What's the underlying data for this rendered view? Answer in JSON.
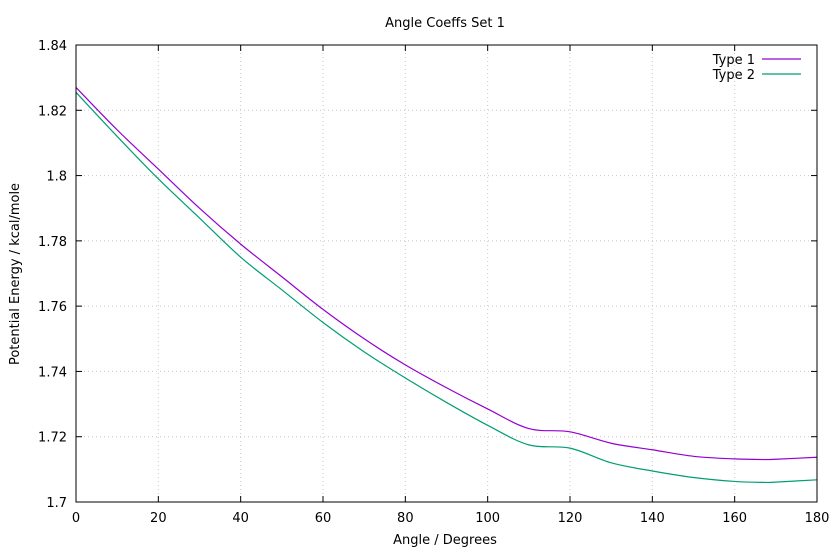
{
  "chart_data": {
    "type": "line",
    "title": "Angle Coeffs Set 1",
    "xlabel": "Angle / Degrees",
    "ylabel": "Potential Energy / kcal/mole",
    "xlim": [
      0,
      180
    ],
    "ylim": [
      1.7,
      1.84
    ],
    "xticks": [
      "0",
      "20",
      "40",
      "60",
      "80",
      "100",
      "120",
      "140",
      "160",
      "180"
    ],
    "yticks": [
      "1.7",
      "1.72",
      "1.74",
      "1.76",
      "1.78",
      "1.8",
      "1.82",
      "1.84"
    ],
    "grid": true,
    "legend_position": "top-right",
    "series": [
      {
        "name": "Type 1",
        "color": "#9400d3",
        "x": [
          0,
          10,
          20,
          30,
          40,
          50,
          60,
          70,
          80,
          90,
          100,
          110,
          120,
          130,
          140,
          150,
          160,
          167,
          170,
          180
        ],
        "y": [
          1.827,
          1.814,
          1.802,
          1.79,
          1.779,
          1.769,
          1.759,
          1.75,
          1.742,
          1.735,
          1.7285,
          1.7225,
          1.7215,
          1.718,
          1.716,
          1.714,
          1.7132,
          1.713,
          1.7131,
          1.7137
        ]
      },
      {
        "name": "Type 2",
        "color": "#009e73",
        "x": [
          0,
          10,
          20,
          30,
          40,
          50,
          60,
          70,
          80,
          90,
          100,
          110,
          120,
          130,
          140,
          150,
          160,
          167,
          170,
          180
        ],
        "y": [
          1.8255,
          1.812,
          1.799,
          1.787,
          1.775,
          1.765,
          1.755,
          1.746,
          1.738,
          1.7305,
          1.7235,
          1.7175,
          1.7165,
          1.712,
          1.7095,
          1.7075,
          1.7063,
          1.706,
          1.7061,
          1.7068
        ]
      }
    ]
  }
}
